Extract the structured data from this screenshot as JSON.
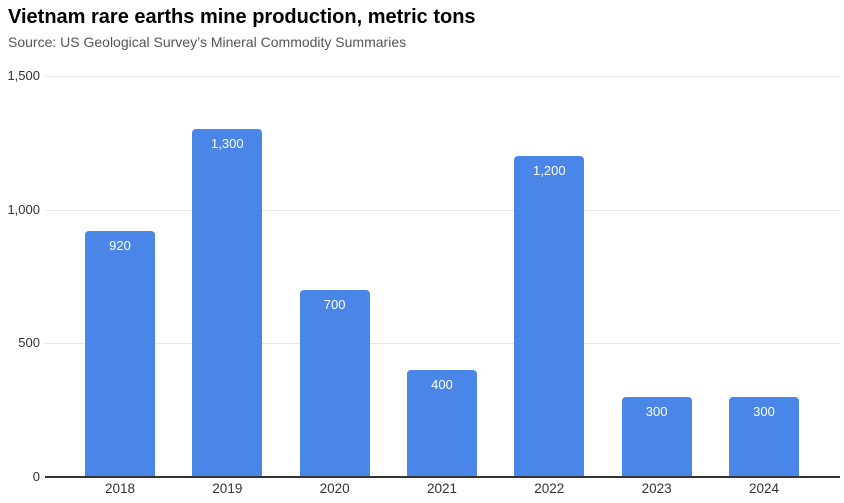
{
  "header": {
    "title": "Vietnam rare earths mine production, metric tons",
    "source": "Source: US Geological Survey’s Mineral Commodity Summaries"
  },
  "chart_data": {
    "type": "bar",
    "title": "Vietnam rare earths mine production, metric tons",
    "subtitle": "Source: US Geological Survey’s Mineral Commodity Summaries",
    "xlabel": "",
    "ylabel": "",
    "unit": "metric tons",
    "categories": [
      "2018",
      "2019",
      "2020",
      "2021",
      "2022",
      "2023",
      "2024"
    ],
    "values": [
      920,
      1300,
      700,
      400,
      1200,
      300,
      300
    ],
    "value_labels": [
      "920",
      "1,300",
      "700",
      "400",
      "1,200",
      "300",
      "300"
    ],
    "ylim": [
      0,
      1500
    ],
    "yticks": [
      {
        "value": 0,
        "label": "0"
      },
      {
        "value": 500,
        "label": "500"
      },
      {
        "value": 1000,
        "label": "1,000"
      },
      {
        "value": 1500,
        "label": "1,500"
      }
    ],
    "grid": true,
    "legend_position": "none",
    "colors": {
      "bar": "#4a86e8",
      "bar_label": "#ffffff",
      "gridline": "#e6e6e6",
      "axis_line": "#333333",
      "tick_label": "#333333",
      "title": "#000000",
      "source": "#555555",
      "background": "#ffffff"
    }
  }
}
